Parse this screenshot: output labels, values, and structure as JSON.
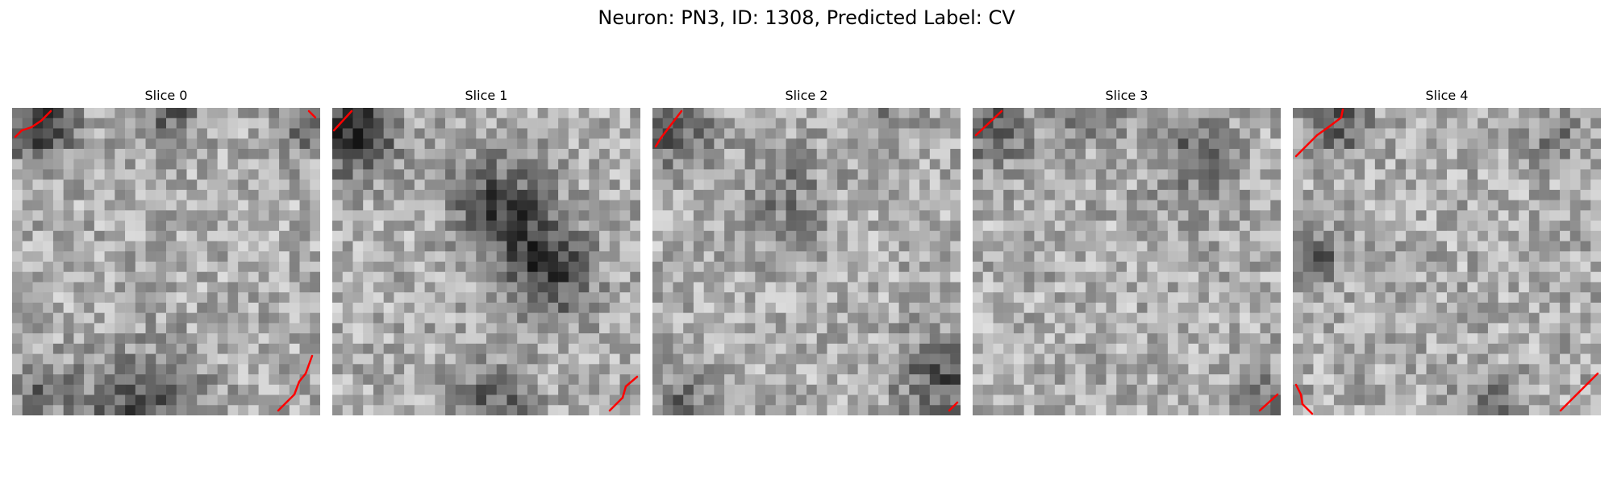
{
  "figure": {
    "title": "Neuron: PN3, ID: 1308, Predicted Label: CV",
    "colormap": "gray",
    "contour_color": "#ff0000",
    "grid_size": 30
  },
  "slices": [
    {
      "title": "Slice 0"
    },
    {
      "title": "Slice 1"
    },
    {
      "title": "Slice 2"
    },
    {
      "title": "Slice 3"
    },
    {
      "title": "Slice 4"
    }
  ]
}
